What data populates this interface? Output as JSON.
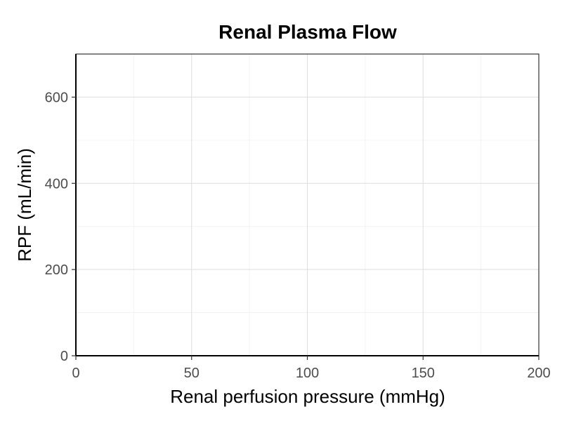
{
  "chart_data": {
    "type": "line",
    "title": "Renal Plasma Flow",
    "xlabel": "Renal perfusion pressure (mmHg)",
    "ylabel": "RPF (mL/min)",
    "xlim": [
      0,
      200
    ],
    "ylim": [
      0,
      700
    ],
    "x_ticks": [
      0,
      50,
      100,
      150,
      200
    ],
    "y_ticks": [
      0,
      200,
      400,
      600
    ],
    "x_minor_ticks": [
      25,
      75,
      125,
      175
    ],
    "y_minor_ticks": [
      100,
      300,
      500
    ],
    "grid": true,
    "legend": "none",
    "series": [],
    "colors": {
      "panel_border": "#333333",
      "grid_major": "#dedede",
      "grid_minor": "#f0f0f0",
      "tick_label": "#4d4d4d",
      "axis_line": "#000000"
    }
  }
}
